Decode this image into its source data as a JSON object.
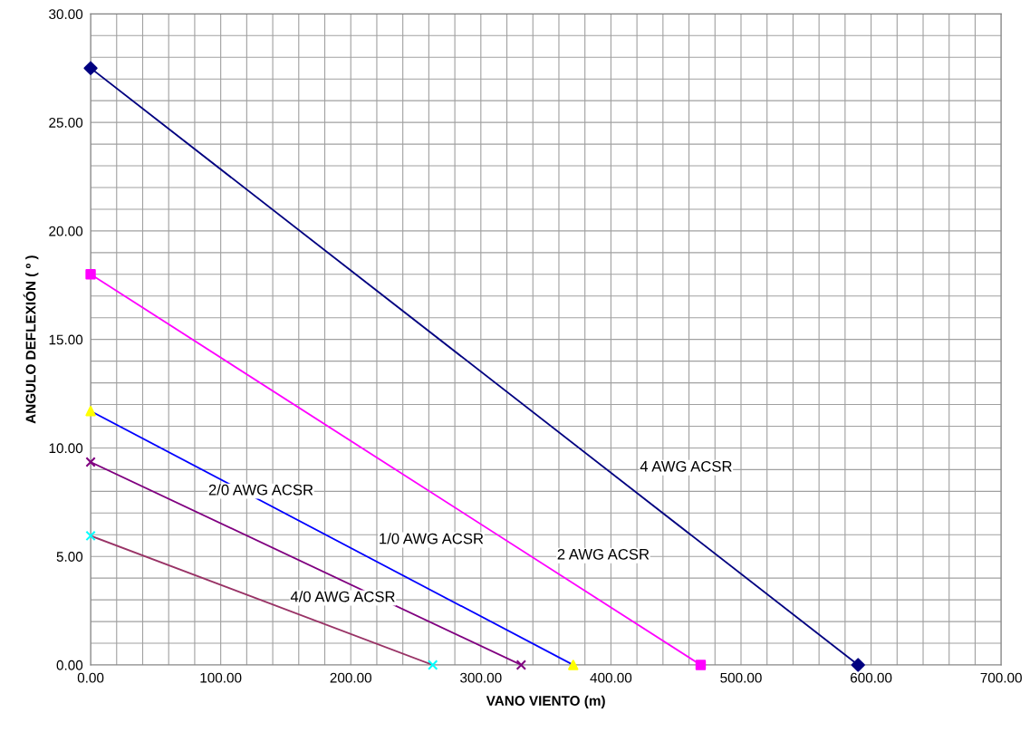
{
  "chart_data": {
    "type": "line",
    "xlabel": "VANO VIENTO (m)",
    "ylabel": "ANGULO DEFLEXIÓN ( º )",
    "xlim": [
      0,
      700
    ],
    "ylim": [
      0,
      30
    ],
    "xticks": [
      {
        "value": 0,
        "label": "0.00"
      },
      {
        "value": 20,
        "label": null
      },
      {
        "value": 40,
        "label": null
      },
      {
        "value": 60,
        "label": null
      },
      {
        "value": 80,
        "label": null
      },
      {
        "value": 100,
        "label": "100.00"
      },
      {
        "value": 120,
        "label": null
      },
      {
        "value": 140,
        "label": null
      },
      {
        "value": 160,
        "label": null
      },
      {
        "value": 180,
        "label": null
      },
      {
        "value": 200,
        "label": "200.00"
      },
      {
        "value": 220,
        "label": null
      },
      {
        "value": 240,
        "label": null
      },
      {
        "value": 260,
        "label": null
      },
      {
        "value": 280,
        "label": null
      },
      {
        "value": 300,
        "label": "300.00"
      },
      {
        "value": 320,
        "label": null
      },
      {
        "value": 340,
        "label": null
      },
      {
        "value": 360,
        "label": null
      },
      {
        "value": 380,
        "label": null
      },
      {
        "value": 400,
        "label": "400.00"
      },
      {
        "value": 420,
        "label": null
      },
      {
        "value": 440,
        "label": null
      },
      {
        "value": 460,
        "label": null
      },
      {
        "value": 480,
        "label": null
      },
      {
        "value": 500,
        "label": "500.00"
      },
      {
        "value": 520,
        "label": null
      },
      {
        "value": 540,
        "label": null
      },
      {
        "value": 560,
        "label": null
      },
      {
        "value": 580,
        "label": null
      },
      {
        "value": 600,
        "label": "600.00"
      },
      {
        "value": 620,
        "label": null
      },
      {
        "value": 640,
        "label": null
      },
      {
        "value": 660,
        "label": null
      },
      {
        "value": 680,
        "label": null
      },
      {
        "value": 700,
        "label": "700.00"
      }
    ],
    "yticks": [
      {
        "value": 0,
        "label": "0.00"
      },
      {
        "value": 1,
        "label": null
      },
      {
        "value": 2,
        "label": null
      },
      {
        "value": 3,
        "label": null
      },
      {
        "value": 4,
        "label": null
      },
      {
        "value": 5,
        "label": "5.00"
      },
      {
        "value": 6,
        "label": null
      },
      {
        "value": 7,
        "label": null
      },
      {
        "value": 8,
        "label": null
      },
      {
        "value": 9,
        "label": null
      },
      {
        "value": 10,
        "label": "10.00"
      },
      {
        "value": 11,
        "label": null
      },
      {
        "value": 12,
        "label": null
      },
      {
        "value": 13,
        "label": null
      },
      {
        "value": 14,
        "label": null
      },
      {
        "value": 15,
        "label": "15.00"
      },
      {
        "value": 16,
        "label": null
      },
      {
        "value": 17,
        "label": null
      },
      {
        "value": 18,
        "label": null
      },
      {
        "value": 19,
        "label": null
      },
      {
        "value": 20,
        "label": "20.00"
      },
      {
        "value": 21,
        "label": null
      },
      {
        "value": 22,
        "label": null
      },
      {
        "value": 23,
        "label": null
      },
      {
        "value": 24,
        "label": null
      },
      {
        "value": 25,
        "label": "25.00"
      },
      {
        "value": 26,
        "label": null
      },
      {
        "value": 27,
        "label": null
      },
      {
        "value": 28,
        "label": null
      },
      {
        "value": 29,
        "label": null
      },
      {
        "value": 30,
        "label": "30.00"
      }
    ],
    "grid": true,
    "legend": false,
    "series": [
      {
        "marker": "none",
        "color": "#000080",
        "x": [
          0,
          590
        ],
        "values": [
          27.5,
          0
        ]
      },
      {
        "type": "scatter",
        "marker": "diamond",
        "color": "#000080",
        "x": [
          0,
          590
        ],
        "values": [
          27.5,
          0
        ]
      },
      {
        "marker": "none",
        "color": "#ff00ff",
        "x": [
          0,
          469
        ],
        "values": [
          18,
          0
        ]
      },
      {
        "type": "scatter",
        "marker": "square",
        "color": "#ff00ff",
        "x": [
          0,
          469
        ],
        "values": [
          18,
          0
        ]
      },
      {
        "marker": "none",
        "color": "#0000ff",
        "x": [
          0,
          371
        ],
        "values": [
          11.7,
          0
        ]
      },
      {
        "type": "scatter",
        "marker": "triangle",
        "color": "#ffff00",
        "x": [
          0,
          371
        ],
        "values": [
          11.7,
          0
        ]
      },
      {
        "marker": "none",
        "color": "#800080",
        "x": [
          0,
          331
        ],
        "values": [
          9.35,
          0
        ]
      },
      {
        "type": "scatter",
        "marker": "cross",
        "color": "#800080",
        "x": [
          0,
          331
        ],
        "values": [
          9.35,
          0
        ]
      },
      {
        "marker": "none",
        "color": "#993366",
        "x": [
          0,
          263
        ],
        "values": [
          5.95,
          0
        ]
      },
      {
        "type": "scatter",
        "marker": "cross",
        "color": "#00ffff",
        "x": [
          0,
          263
        ],
        "values": [
          5.95,
          0
        ]
      }
    ],
    "annotations": [
      "4 AWG ACSR",
      "2 AWG ACSR",
      "1/0 AWG ACSR",
      "2/0 AWG ACSR",
      "4/0 AWG ACSR"
    ]
  }
}
